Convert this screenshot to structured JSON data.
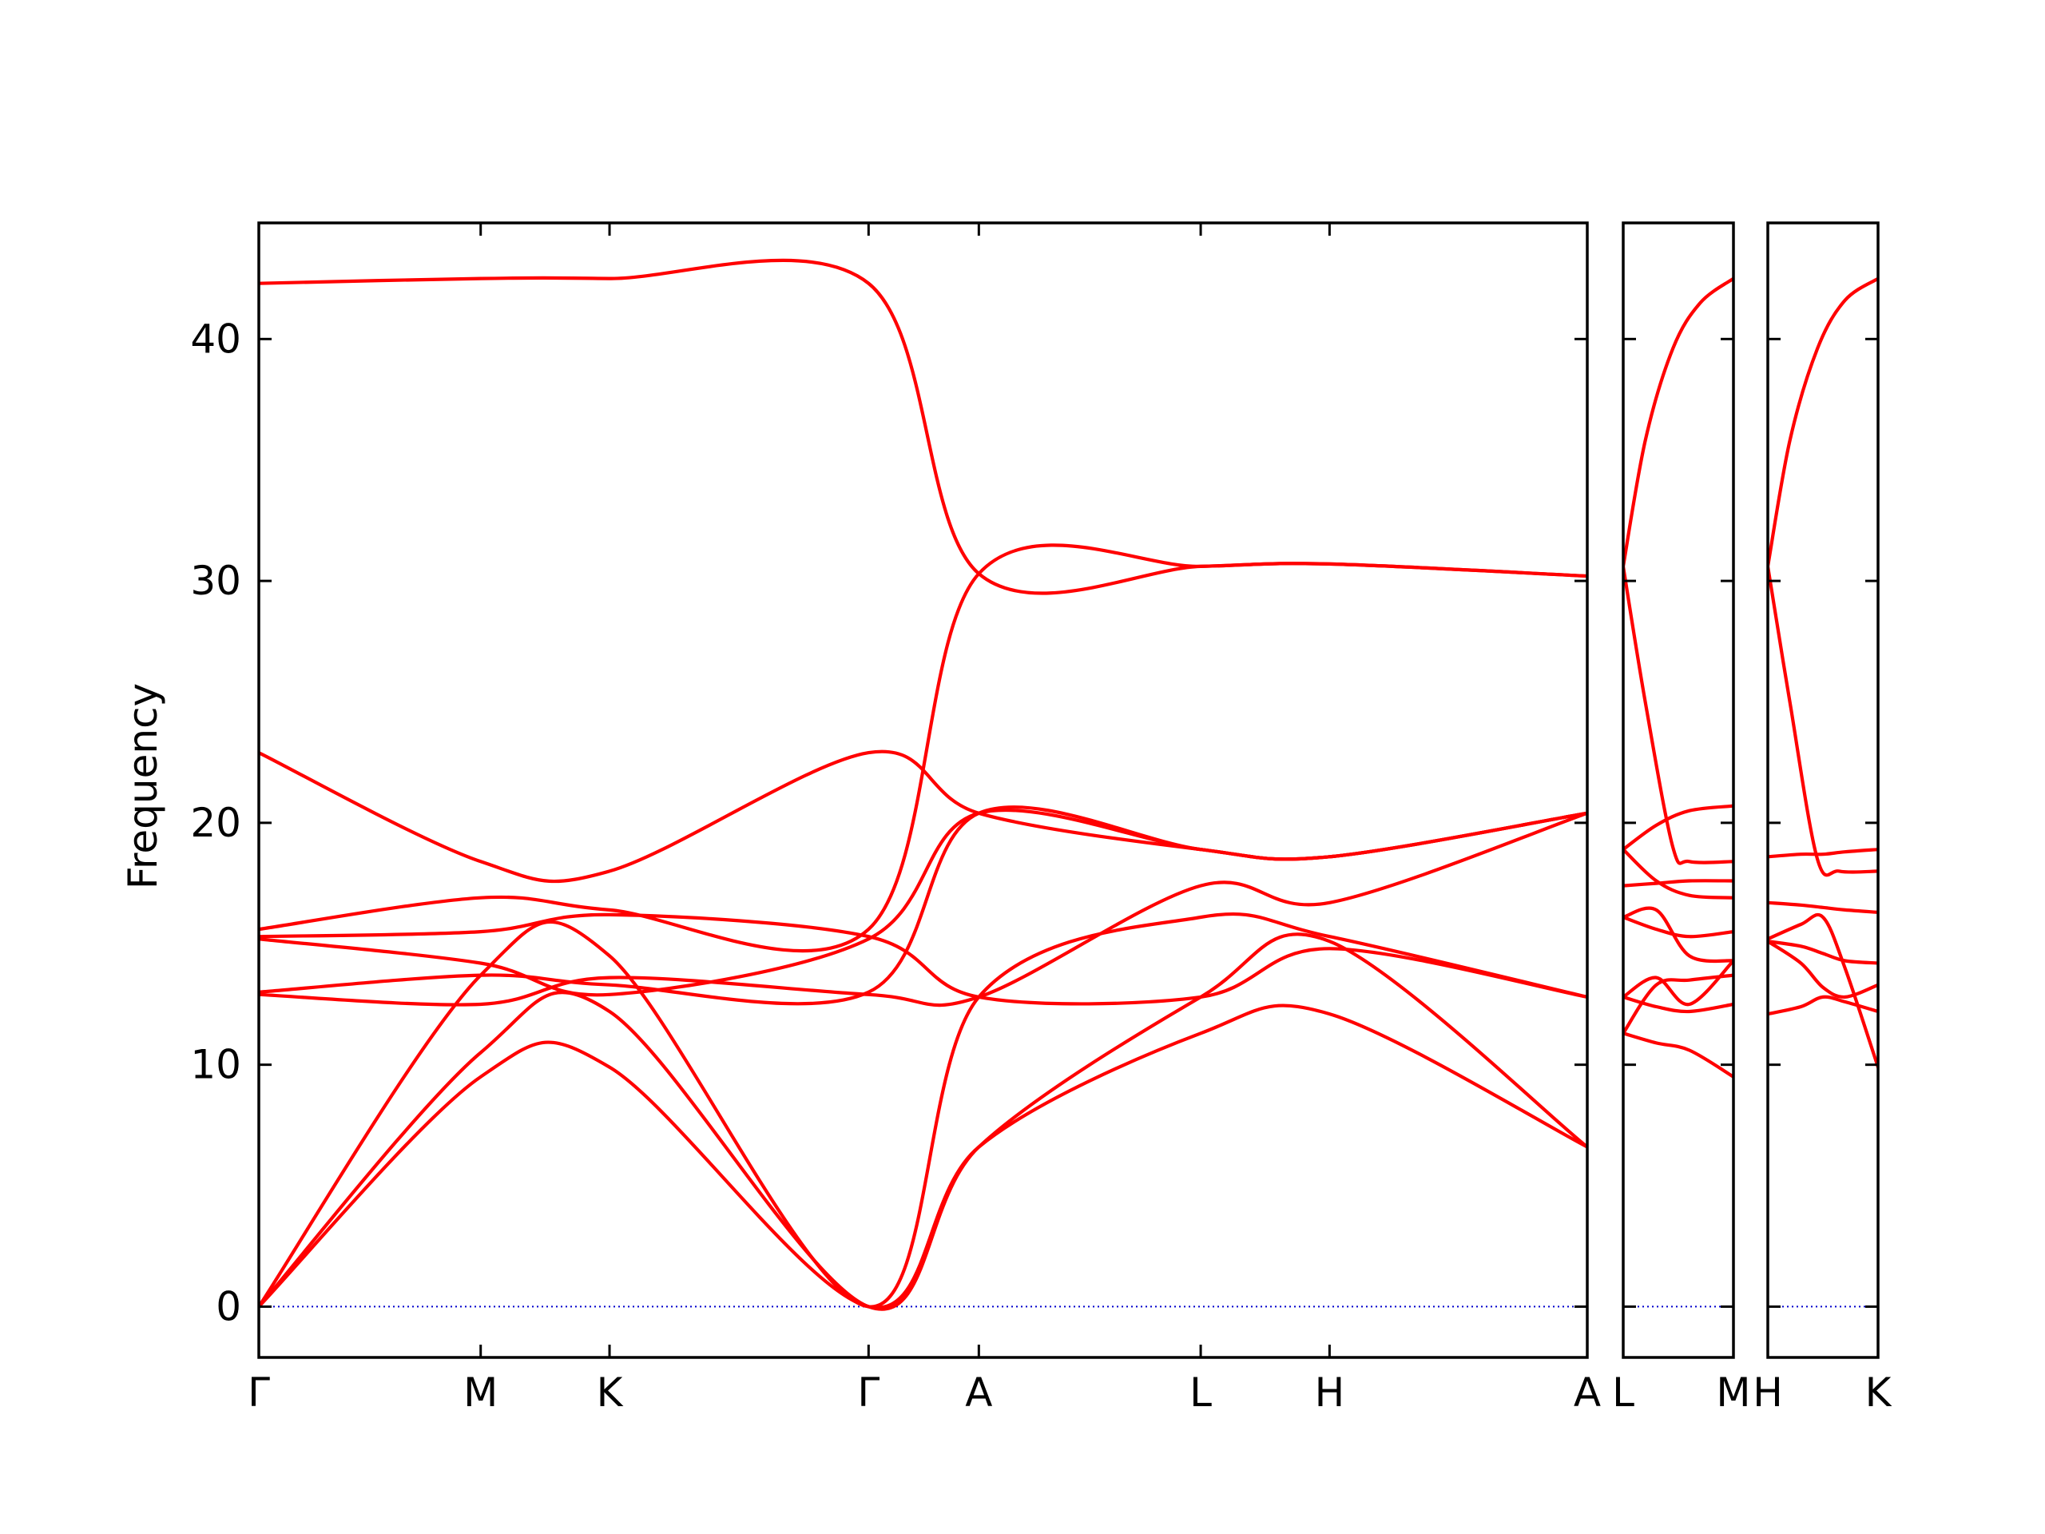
{
  "chart_data": {
    "type": "line",
    "title": "",
    "ylabel": "Frequency",
    "ylim": [
      -2.1,
      44.8
    ],
    "yticks": [
      0,
      10,
      20,
      30,
      40
    ],
    "grid": false,
    "legend": "none",
    "line_color": "#ff0000",
    "zero_line_color": "#0000cc",
    "panels": [
      {
        "id": "path1",
        "xlim": [
          0,
          100
        ],
        "high_symmetry_points": [
          {
            "label": "Γ",
            "x": 0
          },
          {
            "label": "M",
            "x": 16.7
          },
          {
            "label": "K",
            "x": 26.4
          },
          {
            "label": "Γ",
            "x": 45.9
          },
          {
            "label": "A",
            "x": 54.2
          },
          {
            "label": "L",
            "x": 70.9
          },
          {
            "label": "H",
            "x": 80.6
          },
          {
            "label": "A",
            "x": 100
          }
        ],
        "bands": [
          {
            "name": "b1",
            "x": [
              0,
              16.7,
              26.4,
              45.9,
              54.2,
              70.9,
              80.6,
              100
            ],
            "y": [
              0,
              9.5,
              9.9,
              0,
              6.6,
              11.3,
              12.1,
              6.6
            ]
          },
          {
            "name": "b2",
            "x": [
              0,
              16.7,
              26.4,
              45.9,
              54.2,
              70.9,
              80.6,
              100
            ],
            "y": [
              0,
              10.5,
              12.2,
              0,
              6.6,
              12.8,
              15.1,
              6.6
            ]
          },
          {
            "name": "b3",
            "x": [
              0,
              16.7,
              26.4,
              45.9,
              54.2,
              70.9,
              80.6,
              100
            ],
            "y": [
              0,
              13.7,
              14.5,
              0,
              12.8,
              16.1,
              15.3,
              12.8
            ]
          },
          {
            "name": "b4",
            "x": [
              0,
              16.7,
              26.4,
              45.9,
              54.2,
              70.9,
              80.6,
              100
            ],
            "y": [
              12.9,
              12.5,
              13.6,
              12.9,
              12.8,
              17.4,
              16.7,
              20.4
            ]
          },
          {
            "name": "b5",
            "x": [
              0,
              16.7,
              26.4,
              45.9,
              54.2,
              70.9,
              80.6,
              100
            ],
            "y": [
              13.0,
              13.7,
              13.3,
              13.0,
              20.4,
              18.9,
              18.6,
              20.4
            ]
          },
          {
            "name": "b6",
            "x": [
              0,
              16.7,
              26.4,
              45.9,
              54.2,
              70.9,
              80.6,
              100
            ],
            "y": [
              15.2,
              14.2,
              12.9,
              15.2,
              20.4,
              18.9,
              18.6,
              20.4
            ]
          },
          {
            "name": "b7",
            "x": [
              0,
              16.7,
              26.4,
              45.9,
              54.2,
              70.9,
              80.6,
              100
            ],
            "y": [
              15.3,
              15.5,
              16.2,
              15.3,
              12.8,
              12.8,
              14.8,
              12.8
            ]
          },
          {
            "name": "b8",
            "x": [
              0,
              16.7,
              26.4,
              45.9,
              54.2,
              70.9,
              80.6,
              100
            ],
            "y": [
              15.6,
              16.9,
              16.4,
              15.6,
              30.3,
              30.6,
              30.7,
              30.2
            ]
          },
          {
            "name": "b9",
            "x": [
              0,
              16.7,
              26.4,
              45.9,
              54.2,
              70.9,
              80.6,
              100
            ],
            "y": [
              22.9,
              18.4,
              18.0,
              22.9,
              20.4,
              18.9,
              18.6,
              20.4
            ]
          },
          {
            "name": "b10",
            "x": [
              0,
              16.7,
              26.4,
              45.9,
              54.2,
              70.9,
              80.6,
              100
            ],
            "y": [
              42.3,
              42.5,
              42.5,
              42.3,
              30.3,
              30.6,
              30.7,
              30.2
            ]
          }
        ]
      },
      {
        "id": "path2",
        "xlim": [
          0,
          100
        ],
        "high_symmetry_points": [
          {
            "label": "L",
            "x": 0
          },
          {
            "label": "M",
            "x": 100
          }
        ],
        "bands": [
          {
            "name": "b1",
            "x": [
              0,
              30,
              60,
              100
            ],
            "y": [
              11.3,
              10.9,
              10.6,
              9.5
            ]
          },
          {
            "name": "b2",
            "x": [
              0,
              30,
              60,
              100
            ],
            "y": [
              12.8,
              12.4,
              12.2,
              12.5
            ]
          },
          {
            "name": "b3",
            "x": [
              0,
              30,
              60,
              100
            ],
            "y": [
              11.3,
              13.3,
              13.5,
              13.7
            ]
          },
          {
            "name": "b4",
            "x": [
              0,
              30,
              60,
              100
            ],
            "y": [
              12.8,
              13.6,
              12.5,
              14.3
            ]
          },
          {
            "name": "b5",
            "x": [
              0,
              30,
              60,
              100
            ],
            "y": [
              16.1,
              16.4,
              14.5,
              14.3
            ]
          },
          {
            "name": "b6",
            "x": [
              0,
              30,
              60,
              100
            ],
            "y": [
              16.1,
              15.6,
              15.3,
              15.5
            ]
          },
          {
            "name": "b7",
            "x": [
              0,
              30,
              60,
              100
            ],
            "y": [
              17.4,
              17.5,
              17.6,
              17.6
            ]
          },
          {
            "name": "b8",
            "x": [
              0,
              30,
              60,
              100
            ],
            "y": [
              18.9,
              19.9,
              20.5,
              20.7
            ]
          },
          {
            "name": "b9",
            "x": [
              0,
              30,
              60,
              100
            ],
            "y": [
              18.9,
              17.6,
              17.0,
              16.9
            ]
          },
          {
            "name": "b10",
            "x": [
              0,
              20,
              45,
              60,
              100
            ],
            "y": [
              30.6,
              25.0,
              19.0,
              18.4,
              18.4
            ]
          },
          {
            "name": "b11",
            "x": [
              0,
              20,
              45,
              70,
              100
            ],
            "y": [
              30.6,
              35.8,
              39.6,
              41.5,
              42.5
            ]
          }
        ]
      },
      {
        "id": "path3",
        "xlim": [
          0,
          100
        ],
        "high_symmetry_points": [
          {
            "label": "H",
            "x": 0
          },
          {
            "label": "K",
            "x": 100
          }
        ],
        "bands": [
          {
            "name": "b1",
            "x": [
              0,
              30,
              50,
              70,
              100
            ],
            "y": [
              12.1,
              12.4,
              12.8,
              12.6,
              12.2
            ]
          },
          {
            "name": "b2",
            "x": [
              0,
              30,
              50,
              70,
              100
            ],
            "y": [
              15.1,
              14.2,
              13.2,
              12.8,
              13.3
            ]
          },
          {
            "name": "b3",
            "x": [
              0,
              30,
              50,
              70,
              100
            ],
            "y": [
              15.2,
              15.8,
              16.1,
              14.0,
              9.9
            ]
          },
          {
            "name": "b4",
            "x": [
              0,
              30,
              50,
              70,
              100
            ],
            "y": [
              15.1,
              14.9,
              14.6,
              14.3,
              14.2
            ]
          },
          {
            "name": "b5",
            "x": [
              0,
              30,
              50,
              70,
              100
            ],
            "y": [
              16.7,
              16.6,
              16.5,
              16.4,
              16.3
            ]
          },
          {
            "name": "b6",
            "x": [
              0,
              30,
              50,
              70,
              100
            ],
            "y": [
              18.6,
              18.7,
              18.7,
              18.8,
              18.9
            ]
          },
          {
            "name": "b7",
            "x": [
              0,
              20,
              45,
              65,
              100
            ],
            "y": [
              30.6,
              25.0,
              18.5,
              18.0,
              18.0
            ]
          },
          {
            "name": "b8",
            "x": [
              0,
              20,
              45,
              70,
              100
            ],
            "y": [
              30.6,
              35.8,
              39.6,
              41.6,
              42.5
            ]
          }
        ]
      }
    ]
  }
}
